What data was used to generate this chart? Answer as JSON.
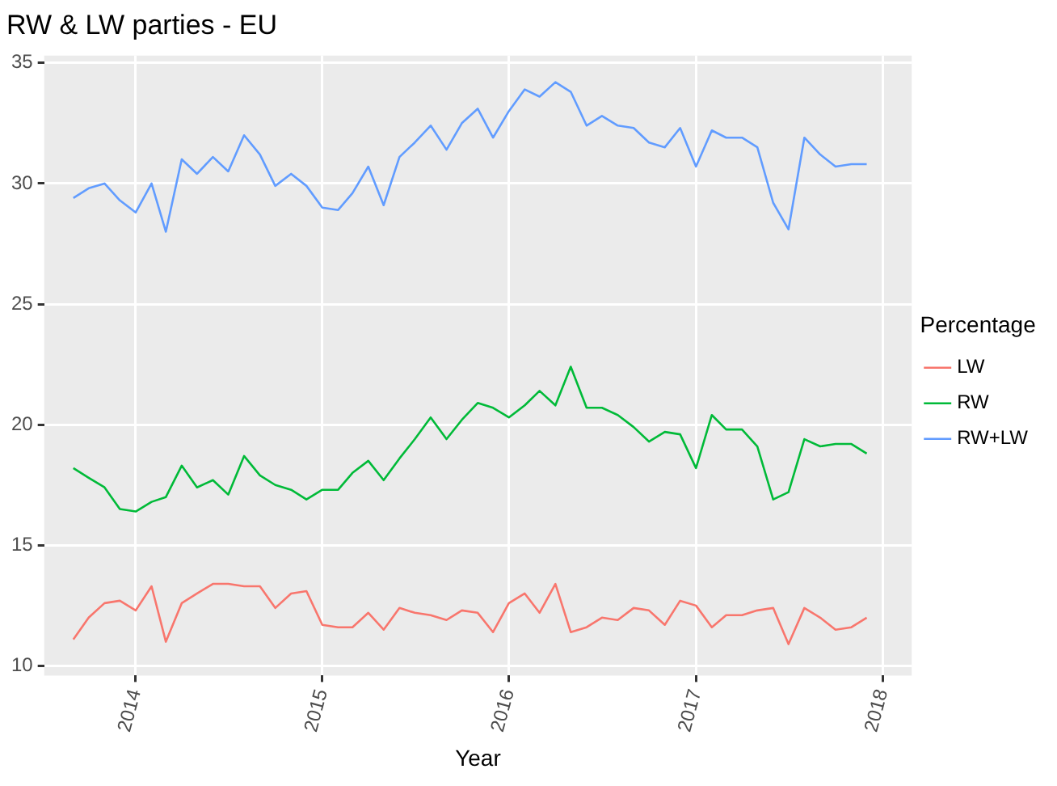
{
  "chart_data": {
    "type": "line",
    "title": "RW & LW parties - EU",
    "xlabel": "Year",
    "legend_title": "Percentage",
    "x": [
      "2013-09",
      "2013-10",
      "2013-11",
      "2013-12",
      "2014-01",
      "2014-02",
      "2014-03",
      "2014-04",
      "2014-05",
      "2014-06",
      "2014-07",
      "2014-08",
      "2014-09",
      "2014-10",
      "2014-11",
      "2014-12",
      "2015-01",
      "2015-02",
      "2015-03",
      "2015-04",
      "2015-05",
      "2015-06",
      "2015-07",
      "2015-08",
      "2015-09",
      "2015-10",
      "2015-11",
      "2015-12",
      "2016-01",
      "2016-02",
      "2016-03",
      "2016-04",
      "2016-05",
      "2016-06",
      "2016-07",
      "2016-08",
      "2016-09",
      "2016-10",
      "2016-11",
      "2016-12",
      "2017-01",
      "2017-02",
      "2017-03",
      "2017-04",
      "2017-05",
      "2017-06",
      "2017-07",
      "2017-08",
      "2017-09",
      "2017-10",
      "2017-11",
      "2017-12"
    ],
    "series": [
      {
        "name": "LW",
        "color": "#f8766d",
        "values": [
          11.1,
          12.0,
          12.6,
          12.7,
          12.3,
          13.3,
          11.0,
          12.6,
          13.0,
          13.4,
          13.4,
          13.3,
          13.3,
          12.4,
          13.0,
          13.1,
          11.7,
          11.6,
          11.6,
          12.2,
          11.5,
          12.4,
          12.2,
          12.1,
          11.9,
          12.3,
          12.2,
          11.4,
          12.6,
          13.0,
          12.2,
          13.4,
          11.4,
          11.6,
          12.0,
          11.9,
          12.4,
          12.3,
          11.7,
          12.7,
          12.5,
          11.6,
          12.1,
          12.1,
          12.3,
          12.4,
          10.9,
          12.4,
          12.0,
          11.5,
          11.6,
          12.0
        ]
      },
      {
        "name": "RW",
        "color": "#00ba38",
        "values": [
          18.2,
          17.8,
          17.4,
          16.5,
          16.4,
          16.8,
          17.0,
          18.3,
          17.4,
          17.7,
          17.1,
          18.7,
          17.9,
          17.5,
          17.3,
          16.9,
          17.3,
          17.3,
          18.0,
          18.5,
          17.7,
          18.6,
          19.4,
          20.3,
          19.4,
          20.2,
          20.9,
          20.7,
          20.3,
          20.8,
          21.4,
          20.8,
          22.4,
          20.7,
          20.7,
          20.4,
          19.9,
          19.3,
          19.7,
          19.6,
          18.2,
          20.4,
          19.8,
          19.8,
          19.1,
          16.9,
          17.2,
          19.4,
          19.1,
          19.2,
          19.2,
          18.8
        ]
      },
      {
        "name": "RW+LW",
        "color": "#619cff",
        "values": [
          29.4,
          29.8,
          30.0,
          29.3,
          28.8,
          30.0,
          28.0,
          31.0,
          30.4,
          31.1,
          30.5,
          32.0,
          31.2,
          29.9,
          30.4,
          29.9,
          29.0,
          28.9,
          29.6,
          30.7,
          29.1,
          31.1,
          31.7,
          32.4,
          31.4,
          32.5,
          33.1,
          31.9,
          33.0,
          33.9,
          33.6,
          34.2,
          33.8,
          32.4,
          32.8,
          32.4,
          32.3,
          31.7,
          31.5,
          32.3,
          30.7,
          32.2,
          31.9,
          31.9,
          31.5,
          29.2,
          28.1,
          31.9,
          31.2,
          30.7,
          30.8,
          30.8
        ]
      }
    ],
    "xlim": [
      "2013-07-06",
      "2018-02-27"
    ],
    "xticks": [
      "2014",
      "2015",
      "2016",
      "2017",
      "2018"
    ],
    "ylim": [
      9.6,
      35.3
    ],
    "yticks": [
      10,
      15,
      20,
      25,
      30,
      35
    ],
    "grid": true,
    "legend": "right",
    "marker": "none",
    "line_style": "solid"
  }
}
